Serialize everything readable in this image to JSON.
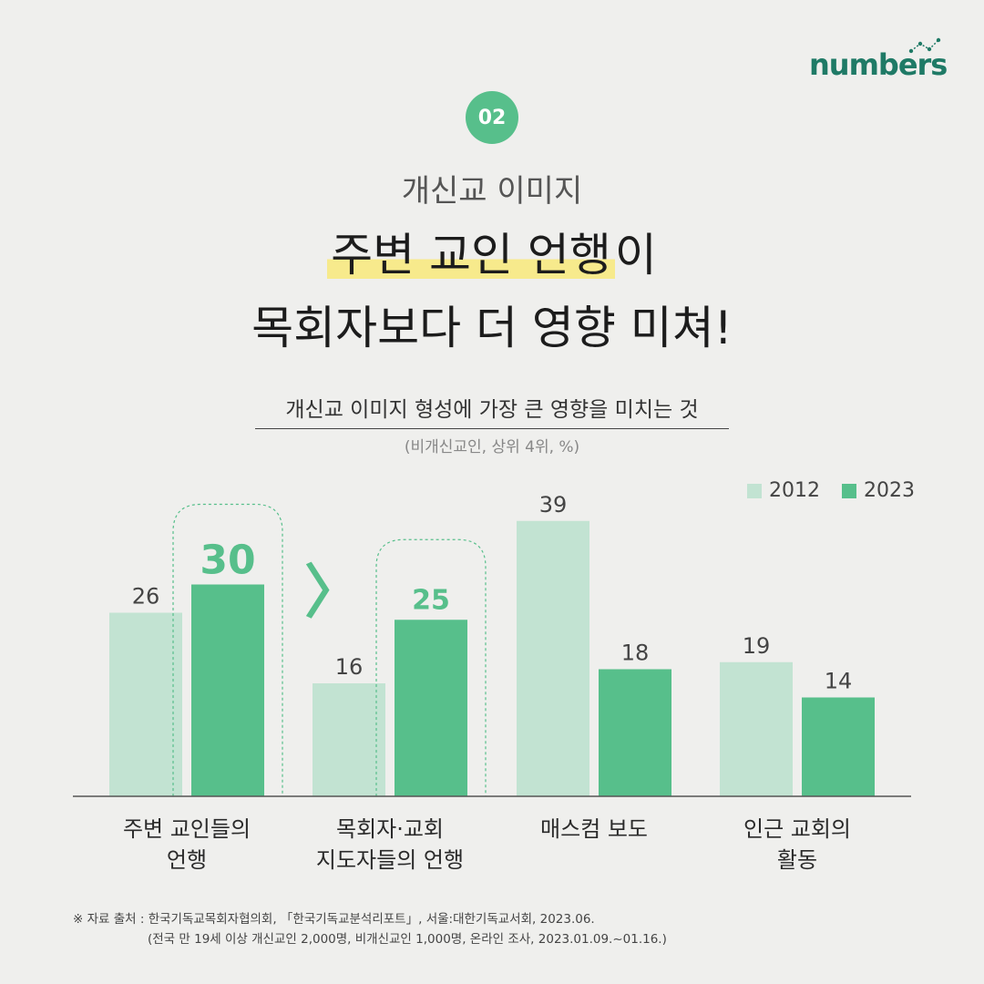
{
  "brand": {
    "logo_text": "numbers"
  },
  "badge": "02",
  "kicker": "개신교 이미지",
  "headline": {
    "line1_highlight": "주변 교인 언행",
    "line1_rest": "이",
    "line2": "목회자보다 더 영향 미쳐!"
  },
  "subtitle": "개신교 이미지 형성에 가장 큰 영향을 미치는 것",
  "note": "(비개신교인, 상위 4위, %)",
  "colors": {
    "light": "#c2e3d2",
    "dark": "#57bf8b",
    "accent": "#57bf8b"
  },
  "comparison_mark": "〉",
  "chart_data": {
    "type": "bar",
    "categories": [
      "주변 교인들의\n언행",
      "목회자·교회\n지도자들의 언행",
      "매스컴 보도",
      "인근 교회의\n활동"
    ],
    "series": [
      {
        "name": "2012",
        "values": [
          26,
          16,
          39,
          19
        ]
      },
      {
        "name": "2023",
        "values": [
          30,
          25,
          18,
          14
        ]
      }
    ],
    "ylim": [
      0,
      40
    ],
    "highlighted": [
      {
        "category_index": 0,
        "series_index": 1
      },
      {
        "category_index": 1,
        "series_index": 1
      }
    ],
    "legend": "top-right",
    "grid": false
  },
  "source": {
    "line1": "※ 자료 출처 : 한국기독교목회자협의회, 「한국기독교분석리포트」, 서울:대한기독교서회, 2023.06.",
    "line2": "(전국 만 19세 이상 개신교인 2,000명, 비개신교인 1,000명, 온라인 조사, 2023.01.09.~01.16.)"
  }
}
